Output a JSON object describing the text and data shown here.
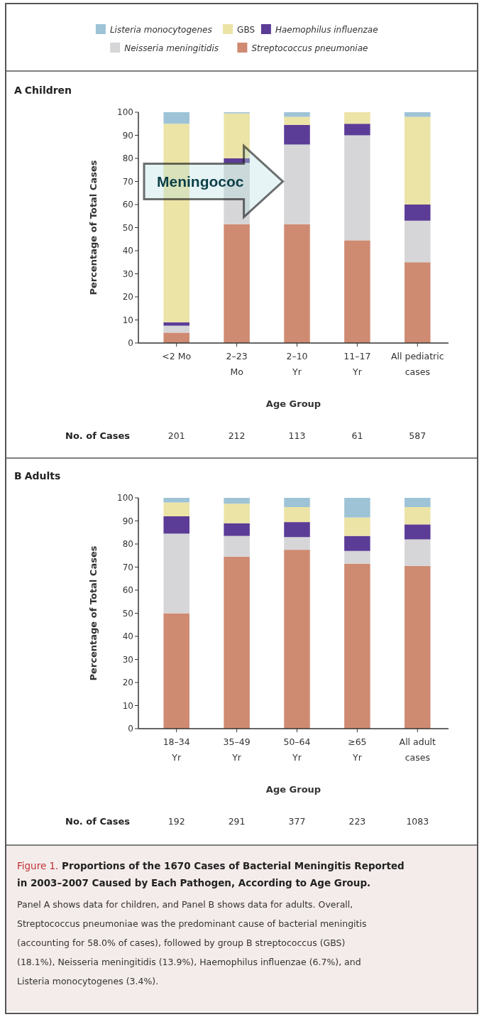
{
  "chart_data": [
    {
      "type": "bar",
      "title": "A Children",
      "xlabel": "Age Group",
      "ylabel": "Percentage of Total Cases",
      "stacked": true,
      "legend": "top",
      "categories": [
        "<2 Mo",
        "2–23 Mo",
        "2–10 Yr",
        "11–17 Yr",
        "All pediatric cases"
      ],
      "ylim": [
        0,
        100
      ],
      "yticks": [
        0,
        10,
        20,
        30,
        40,
        50,
        60,
        70,
        80,
        90,
        100
      ],
      "series": [
        {
          "name": "Streptococcus pneumoniae",
          "color": "#cf8a72",
          "values": [
            4.5,
            51.5,
            51.5,
            44.5,
            35
          ]
        },
        {
          "name": "Neisseria meningitidis",
          "color": "#d6d6d8",
          "values": [
            3,
            26.5,
            34.5,
            45.5,
            18
          ]
        },
        {
          "name": "Haemophilus influenzae",
          "color": "#5b3c96",
          "values": [
            1.5,
            2,
            8.5,
            5,
            7
          ]
        },
        {
          "name": "GBS",
          "color": "#ece3a6",
          "values": [
            86,
            19.5,
            3.5,
            5,
            38
          ]
        },
        {
          "name": "Listeria monocytogenes",
          "color": "#9ec3d6",
          "values": [
            5,
            0.5,
            2,
            0,
            2
          ]
        }
      ],
      "annotations": [
        "No. of Cases",
        "201",
        "212",
        "113",
        "61",
        "587",
        "Meningococ"
      ]
    },
    {
      "type": "bar",
      "title": "B Adults",
      "xlabel": "Age Group",
      "ylabel": "Percentage of Total Cases",
      "stacked": true,
      "categories": [
        "18–34 Yr",
        "35–49 Yr",
        "50–64 Yr",
        "≥65 Yr",
        "All adult cases"
      ],
      "ylim": [
        0,
        100
      ],
      "yticks": [
        0,
        10,
        20,
        30,
        40,
        50,
        60,
        70,
        80,
        90,
        100
      ],
      "series": [
        {
          "color": "#cf8a72",
          "values": [
            50,
            74.5,
            77.5,
            71.5,
            70.5
          ]
        },
        {
          "color": "#d6d6d8",
          "values": [
            34.5,
            9,
            5.5,
            5.5,
            11.5
          ]
        },
        {
          "color": "#5b3c96",
          "values": [
            7.5,
            5.5,
            6.5,
            6.5,
            6.5
          ]
        },
        {
          "color": "#ece3a6",
          "values": [
            6,
            8.5,
            6.5,
            8,
            7.5
          ]
        },
        {
          "color": "#9ec3d6",
          "values": [
            2,
            2.5,
            4,
            8.5,
            4
          ]
        }
      ],
      "annotations": [
        "No. of Cases",
        "192",
        "291",
        "377",
        "223",
        "1083"
      ]
    },
    {
      "type": "other",
      "title": "Figure 1. Proportions of the 1670 Cases of Bacterial Meningitis Reported in 2003–2007 Caused by Each Pathogen, According to Age Group.",
      "annotations": [
        "Panel A shows data for children, and Panel B shows data for adults. Overall, Streptococcus pneumoniae was the predominant cause of bacterial meningitis (accounting for 58.0% of cases), followed by group B streptococcus (GBS) (18.1%), Neisseria meningitidis (13.9%), Haemophilus influenzae (6.7%), and Listeria monocytogenes (3.4%)."
      ]
    }
  ]
}
